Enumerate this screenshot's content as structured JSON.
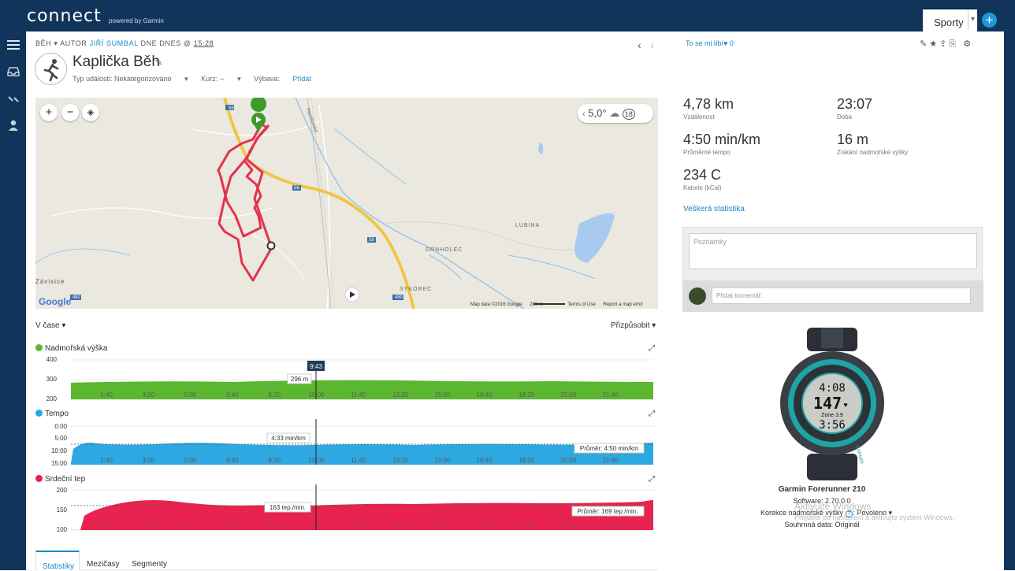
{
  "header": {
    "logo": "connect",
    "logo_sub": "powered by Garmin",
    "sports_label": "Sporty",
    "sports_caret": "▾",
    "add_label": "+"
  },
  "activity": {
    "type": "BĚH",
    "author_prefix": "AUTOR",
    "author": "JIŘÍ SUMBAL",
    "date_prefix": "DNE DNES @",
    "time": "15:28",
    "title": "Kaplička Běh",
    "event_type": "Typ události: Nekategorizováno",
    "course": "Kurz: --",
    "gear_label": "Výbava:",
    "gear_link": "Přidat",
    "like_text": "To se mi líbí",
    "like_count": "0"
  },
  "map": {
    "temperature": "5,0°",
    "wind": "18",
    "labels": {
      "zavisice": "Závisice",
      "lubina": "LUBINA",
      "drnholec": "DRNHOLEC",
      "sykorec": "SÝKOREC",
      "r58a": "58",
      "r58b": "58",
      "r58c": "58",
      "r480": "480",
      "r482": "482",
      "road_name": "Fleníštatská"
    },
    "google": "Google",
    "footer": {
      "data": "Map data ©2016 Google",
      "scale": "200 m",
      "terms": "Terms of Use",
      "report": "Report a map error"
    }
  },
  "controls": {
    "time_mode": "V čase",
    "customize": "Přizpůsobit"
  },
  "graphs": {
    "x_ticks": [
      "1:40",
      "3:20",
      "5:00",
      "6:40",
      "8:20",
      "10:00",
      "11:40",
      "13:20",
      "15:00",
      "16:40",
      "18:20",
      "20:00",
      "21:40"
    ],
    "cursor_time": "9:43",
    "elevation": {
      "title": "Nadmořská výška",
      "color": "#5bb630",
      "y_ticks": [
        "400",
        "300",
        "200"
      ],
      "cursor_label": "296 m"
    },
    "pace": {
      "title": "Tempo",
      "color": "#2ea8e0",
      "y_ticks": [
        "0:00",
        "5:00",
        "10:00",
        "15:00"
      ],
      "cursor_label": "4:33 min/km",
      "avg_label": "Průměr: 4:50 min/km"
    },
    "heart": {
      "title": "Srdeční tep",
      "color": "#e8234f",
      "y_ticks": [
        "200",
        "150",
        "100"
      ],
      "cursor_label": "163 tep./min.",
      "avg_label": "Průměr: 169 tep./min."
    }
  },
  "stats": {
    "distance": {
      "value": "4,78 km",
      "label": "Vzdálenost"
    },
    "duration": {
      "value": "23:07",
      "label": "Doba"
    },
    "pace": {
      "value": "4:50 min/km",
      "label": "Průměrné tempo"
    },
    "elevation_gain": {
      "value": "16 m",
      "label": "Získání nadmořské výšky"
    },
    "calories": {
      "value": "234 C",
      "label": "Kalorie (kCal)"
    },
    "all_stats_link": "Veškerá statistika"
  },
  "notes": {
    "placeholder": "Poznámky",
    "comment_placeholder": "Přidat komentář."
  },
  "device": {
    "name": "Garmin Forerunner 210",
    "software": "Software: 2.70.0.0",
    "elev_correction_label": "Korekce nadmořské výšky",
    "elev_correction_value": "Povoleno",
    "summary": "Souhrnná data: Originál",
    "watch_top": "4:08",
    "watch_mid": "147",
    "watch_zone": "Zone 3.9",
    "watch_bottom": "3:56",
    "watch_brand": "GARMIN"
  },
  "watermark": {
    "line1": "Aktivujte Windows",
    "line2": "Přejděte do nastavení a aktivujte systém Windows."
  },
  "tabs": [
    "Statistiky",
    "Mezičasy",
    "Segmenty"
  ]
}
